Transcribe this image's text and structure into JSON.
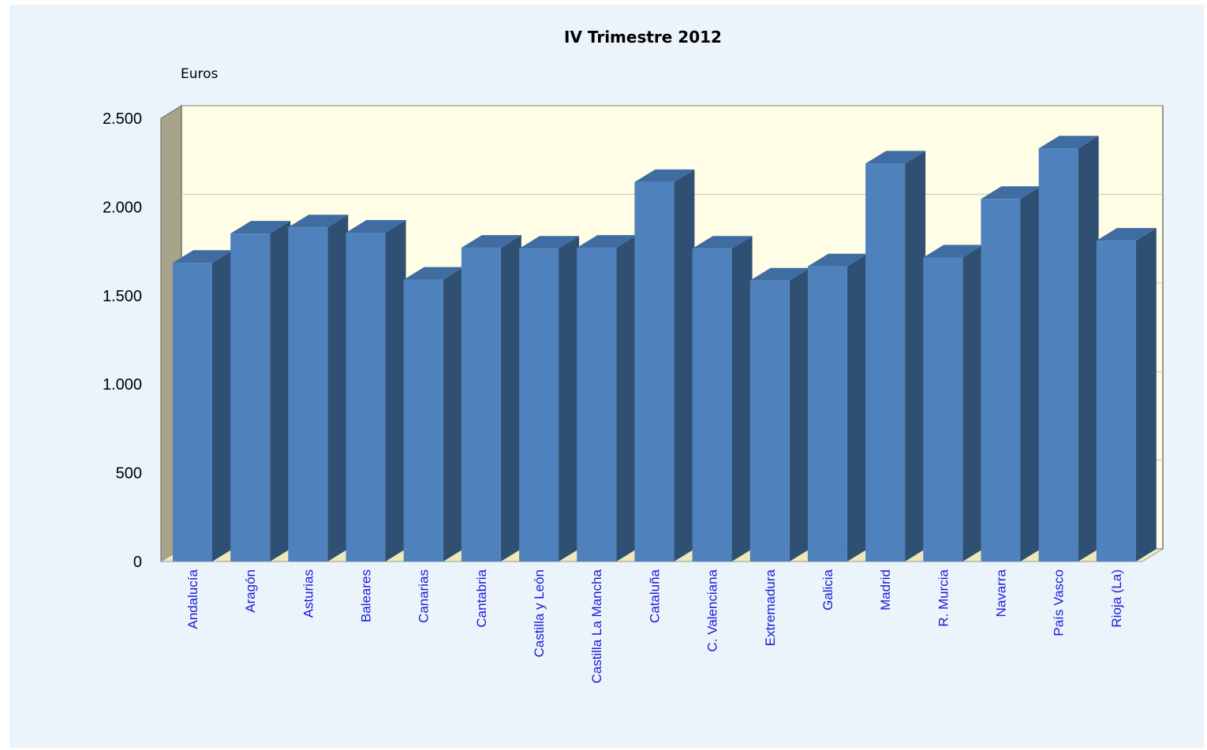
{
  "colors": {
    "background": "#ebf3fb",
    "plot_area": "#fffde6",
    "bar_front": "#4f81bd",
    "bar_side": "#2f5072",
    "bar_top": "#3f6da2",
    "left_wall": "#a8a48a",
    "floor": "#eee9b8",
    "gridline": "#c9c6a8",
    "category_label": "#1a1ad6"
  },
  "chart_data": {
    "type": "bar",
    "style": "3d-column",
    "title": "IV Trimestre 2012",
    "unit_label": "Euros",
    "xlabel": "",
    "ylabel": "",
    "ylim": [
      0,
      2500
    ],
    "yticks": [
      0,
      500,
      1000,
      1500,
      2000,
      2500
    ],
    "ytick_labels": [
      "0",
      "500",
      "1.000",
      "1.500",
      "2.000",
      "2.500"
    ],
    "grid": true,
    "legend": "none",
    "categories": [
      "Andalucía",
      "Aragón",
      "Asturias",
      "Baleares",
      "Canarias",
      "Cantabria",
      "Castilla y León",
      "Castilla La Mancha",
      "Cataluña",
      "C. Valenciana",
      "Extremadura",
      "Galicia",
      "Madrid",
      "R. Murcia",
      "Navarra",
      "País Vasco",
      "Rioja (La)"
    ],
    "values": [
      1685,
      1850,
      1885,
      1855,
      1590,
      1770,
      1765,
      1770,
      2140,
      1765,
      1585,
      1665,
      2245,
      1715,
      2045,
      2330,
      1810
    ]
  }
}
